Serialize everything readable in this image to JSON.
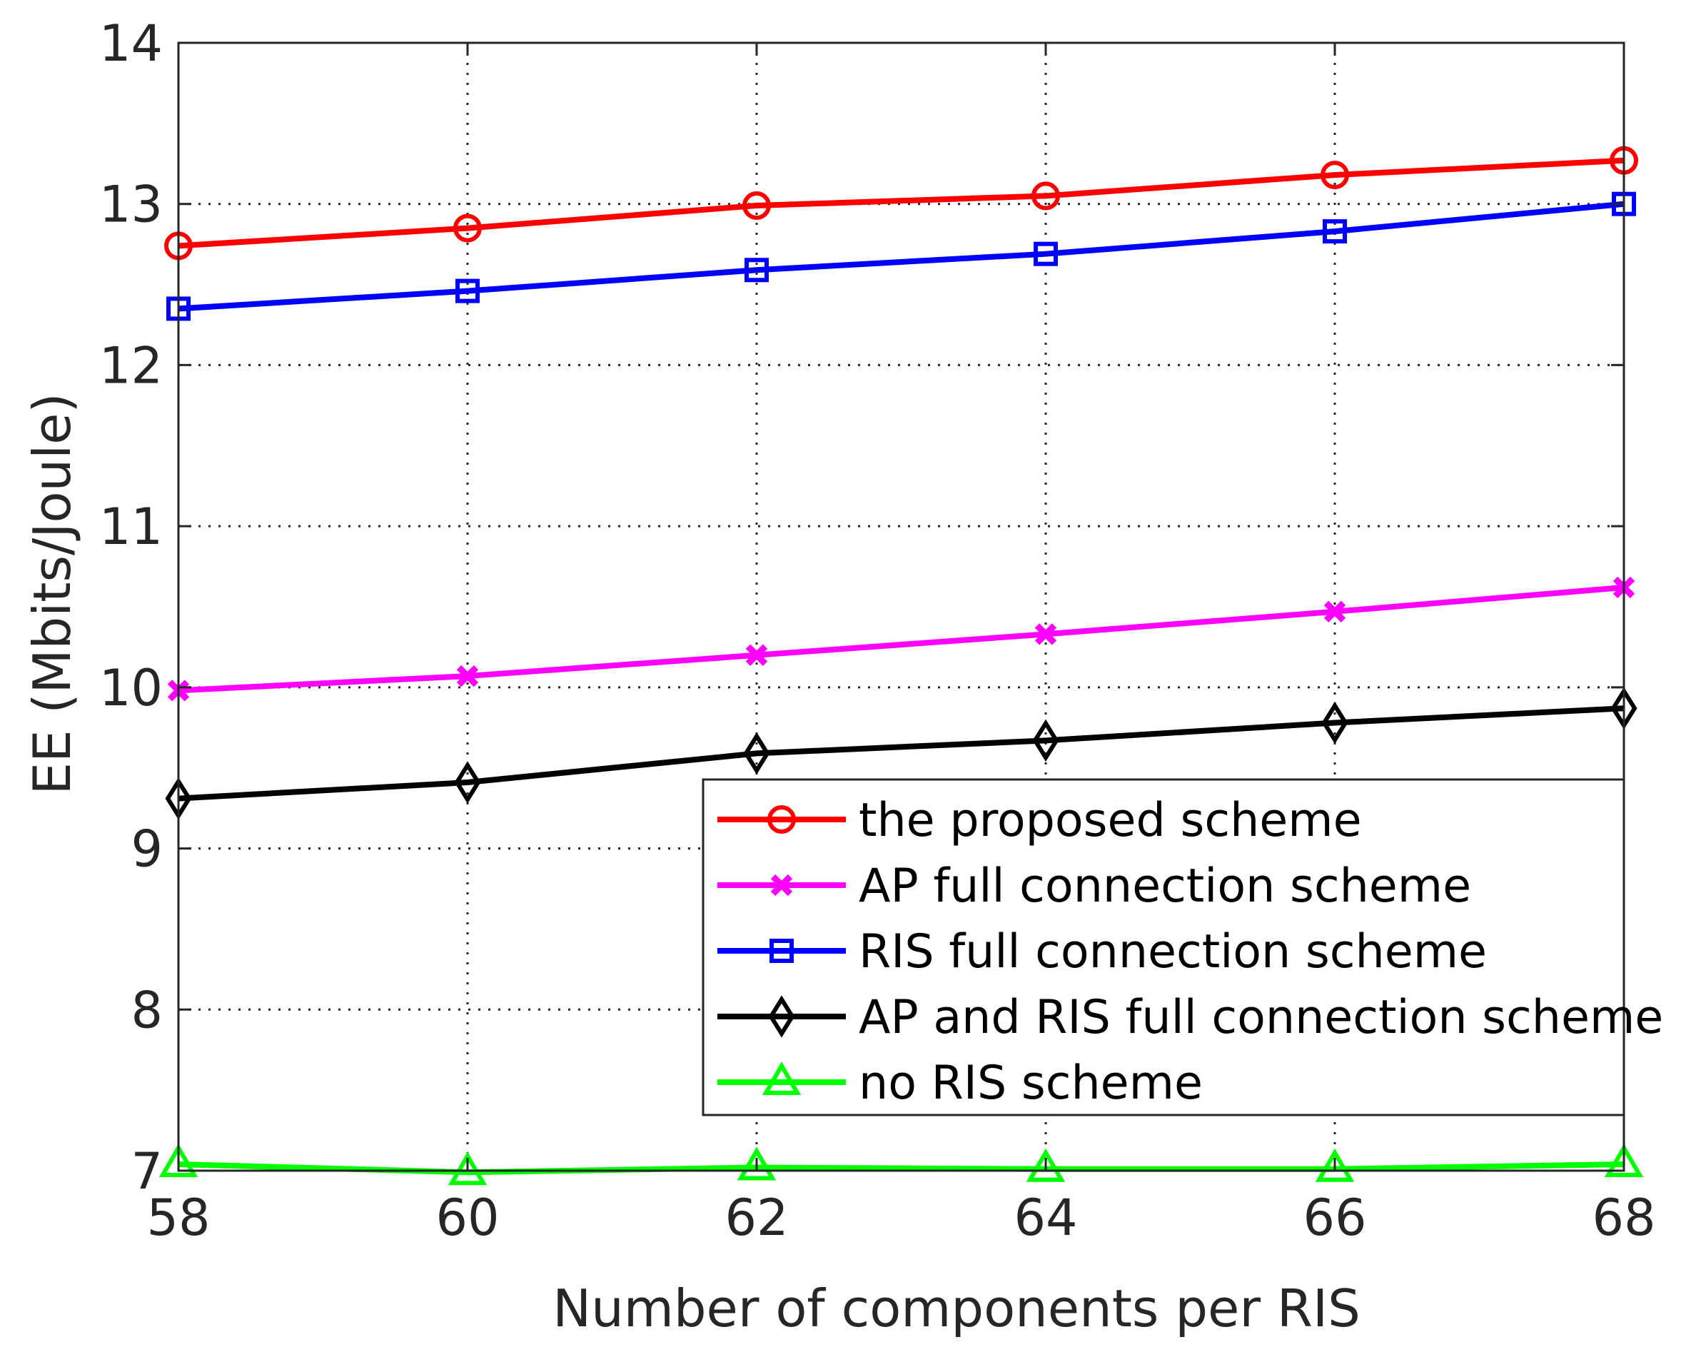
{
  "chart_data": {
    "type": "line",
    "title": "",
    "xlabel": "Number of components per RIS",
    "ylabel": "EE (Mbits/Joule)",
    "x": [
      58,
      60,
      62,
      64,
      66,
      68
    ],
    "xticks": [
      "58",
      "60",
      "62",
      "64",
      "66",
      "68"
    ],
    "yticks": [
      "7",
      "8",
      "9",
      "10",
      "11",
      "12",
      "13",
      "14"
    ],
    "xlim": [
      58,
      68
    ],
    "ylim": [
      7,
      14
    ],
    "grid": true,
    "legend_position": "lower-right",
    "series": [
      {
        "name": "the proposed scheme",
        "color": "#ff0000",
        "marker": "circle",
        "values": [
          12.74,
          12.85,
          12.99,
          13.05,
          13.18,
          13.27
        ]
      },
      {
        "name": "AP full connection scheme",
        "color": "#ff00ff",
        "marker": "x",
        "values": [
          9.98,
          10.07,
          10.2,
          10.33,
          10.47,
          10.62
        ]
      },
      {
        "name": "RIS full connection scheme",
        "color": "#0000ff",
        "marker": "square",
        "values": [
          12.35,
          12.46,
          12.59,
          12.69,
          12.83,
          13.0
        ]
      },
      {
        "name": "AP and RIS full connection scheme",
        "color": "#000000",
        "marker": "diamond",
        "values": [
          9.31,
          9.41,
          9.59,
          9.67,
          9.78,
          9.87
        ]
      },
      {
        "name": "no RIS scheme",
        "color": "#00ff00",
        "marker": "triangle",
        "values": [
          7.04,
          6.99,
          7.02,
          7.01,
          7.01,
          7.04
        ]
      }
    ]
  }
}
